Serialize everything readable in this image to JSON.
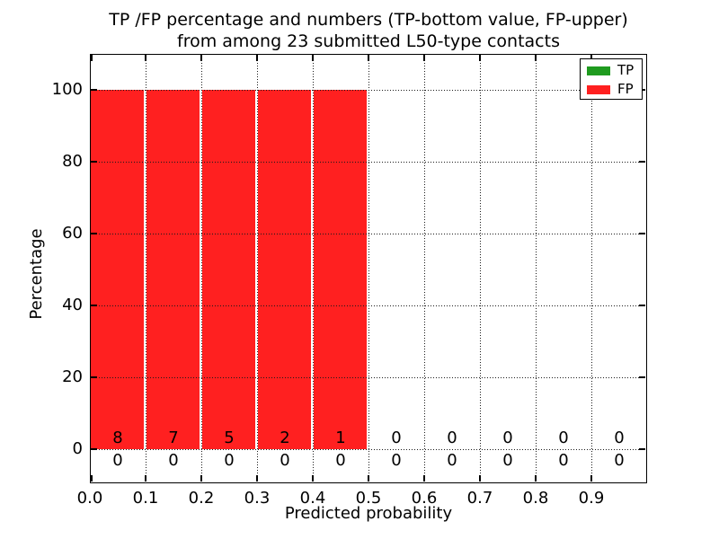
{
  "figure": {
    "title_line1": "TP /FP percentage and numbers (TP-bottom value, FP-upper)",
    "title_line2": "from among 23 submitted L50-type contacts"
  },
  "chart_data": {
    "type": "bar",
    "stacked": true,
    "title": "TP /FP percentage and numbers (TP-bottom value, FP-upper)\nfrom among 23 submitted L50-type contacts",
    "xlabel": "Predicted probability",
    "ylabel": "Percentage",
    "xlim": [
      0.0,
      1.0
    ],
    "ylim": [
      -9.5,
      110
    ],
    "x_tick_values": [
      0.0,
      0.1,
      0.2,
      0.3,
      0.4,
      0.5,
      0.6,
      0.7,
      0.8,
      0.9
    ],
    "x_tick_labels": [
      "0.0",
      "0.1",
      "0.2",
      "0.3",
      "0.4",
      "0.5",
      "0.6",
      "0.7",
      "0.8",
      "0.9"
    ],
    "y_tick_values": [
      0,
      20,
      40,
      60,
      80,
      100
    ],
    "y_tick_labels": [
      "0",
      "20",
      "40",
      "60",
      "80",
      "100"
    ],
    "bin_edges": [
      0.0,
      0.1,
      0.2,
      0.3,
      0.4,
      0.5,
      0.6,
      0.7,
      0.8,
      0.9,
      1.0
    ],
    "grid": {
      "style": "dotted",
      "color": "#000000"
    },
    "series": [
      {
        "name": "TP",
        "color": "#1f9b1f",
        "percentages": [
          0,
          0,
          0,
          0,
          0,
          0,
          0,
          0,
          0,
          0
        ],
        "counts": [
          0,
          0,
          0,
          0,
          0,
          0,
          0,
          0,
          0,
          0
        ]
      },
      {
        "name": "FP",
        "color": "#ff2020",
        "percentages": [
          100,
          100,
          100,
          100,
          100,
          0,
          0,
          0,
          0,
          0
        ],
        "counts": [
          8,
          7,
          5,
          2,
          1,
          0,
          0,
          0,
          0,
          0
        ]
      }
    ],
    "legend": {
      "position": "upper right",
      "entries": [
        {
          "label": "TP",
          "color": "#1f9b1f"
        },
        {
          "label": "FP",
          "color": "#ff2020"
        }
      ]
    }
  }
}
